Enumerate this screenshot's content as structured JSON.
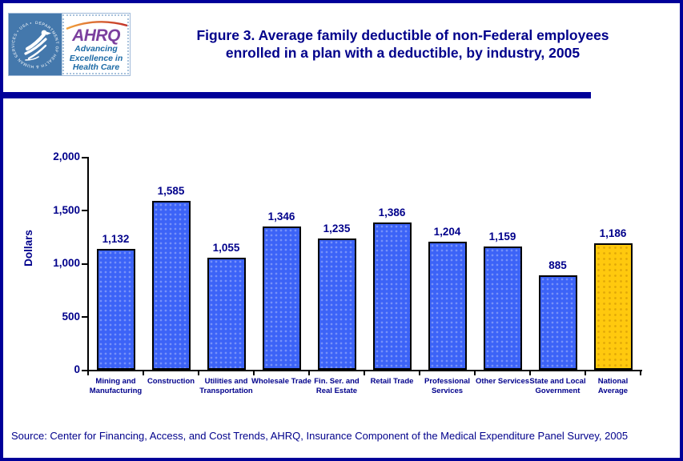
{
  "header": {
    "hhs_logo_ring_text": "DEPARTMENT OF HEALTH & HUMAN SERVICES • USA •",
    "ahrq_logo_text": "AHRQ",
    "ahrq_tagline_line1": "Advancing",
    "ahrq_tagline_line2": "Excellence in",
    "ahrq_tagline_line3": "Health Care",
    "title_line1": "Figure 3. Average family deductible of non-Federal  employees",
    "title_line2": "enrolled in a plan with a deductible, by industry, 2005"
  },
  "chart_data": {
    "type": "bar",
    "title": "Figure 3. Average family deductible of non-Federal employees enrolled in a plan with a deductible, by industry, 2005",
    "xlabel": "",
    "ylabel": "Dollars",
    "ylim": [
      0,
      2000
    ],
    "ytick_values": [
      0,
      500,
      1000,
      1500,
      2000
    ],
    "ytick_labels": [
      "0",
      "500",
      "1,000",
      "1,500",
      "2,000"
    ],
    "grid": false,
    "legend": "none",
    "categories": [
      "Mining and Manufacturing",
      "Construction",
      "Utilities and Transportation",
      "Wholesale Trade",
      "Fin. Ser. and Real Estate",
      "Retail Trade",
      "Professional Services",
      "Other Services",
      "State and Local Government",
      "National Average"
    ],
    "category_label_lines": [
      [
        "Mining and",
        "Manufacturing"
      ],
      [
        "Construction"
      ],
      [
        "Utilities and",
        "Transportation"
      ],
      [
        "Wholesale Trade"
      ],
      [
        "Fin. Ser. and",
        "Real Estate"
      ],
      [
        "Retail Trade"
      ],
      [
        "Professional",
        "Services"
      ],
      [
        "Other Services"
      ],
      [
        "State and Local",
        "Government"
      ],
      [
        "National",
        "Average"
      ]
    ],
    "values": [
      1132,
      1585,
      1055,
      1346,
      1235,
      1386,
      1204,
      1159,
      885,
      1186
    ],
    "value_labels": [
      "1,132",
      "1,585",
      "1,055",
      "1,346",
      "1,235",
      "1,386",
      "1,204",
      "1,159",
      "885",
      "1,186"
    ],
    "bar_colors": [
      "#3C63F7",
      "#3C63F7",
      "#3C63F7",
      "#3C63F7",
      "#3C63F7",
      "#3C63F7",
      "#3C63F7",
      "#3C63F7",
      "#3C63F7",
      "#FFC90E"
    ]
  },
  "footer": {
    "source": "Source: Center for Financing, Access, and Cost Trends, AHRQ, Insurance Component of the Medical Expenditure Panel Survey, 2005"
  },
  "colors": {
    "navy_text": "#00008B",
    "divider_blue": "#000099",
    "bar_blue": "#3C63F7",
    "bar_gold": "#FFC90E",
    "hhs_blue": "#4478AC",
    "ahrq_purple": "#7B3F9E",
    "tagline_blue": "#1B6AA5"
  }
}
